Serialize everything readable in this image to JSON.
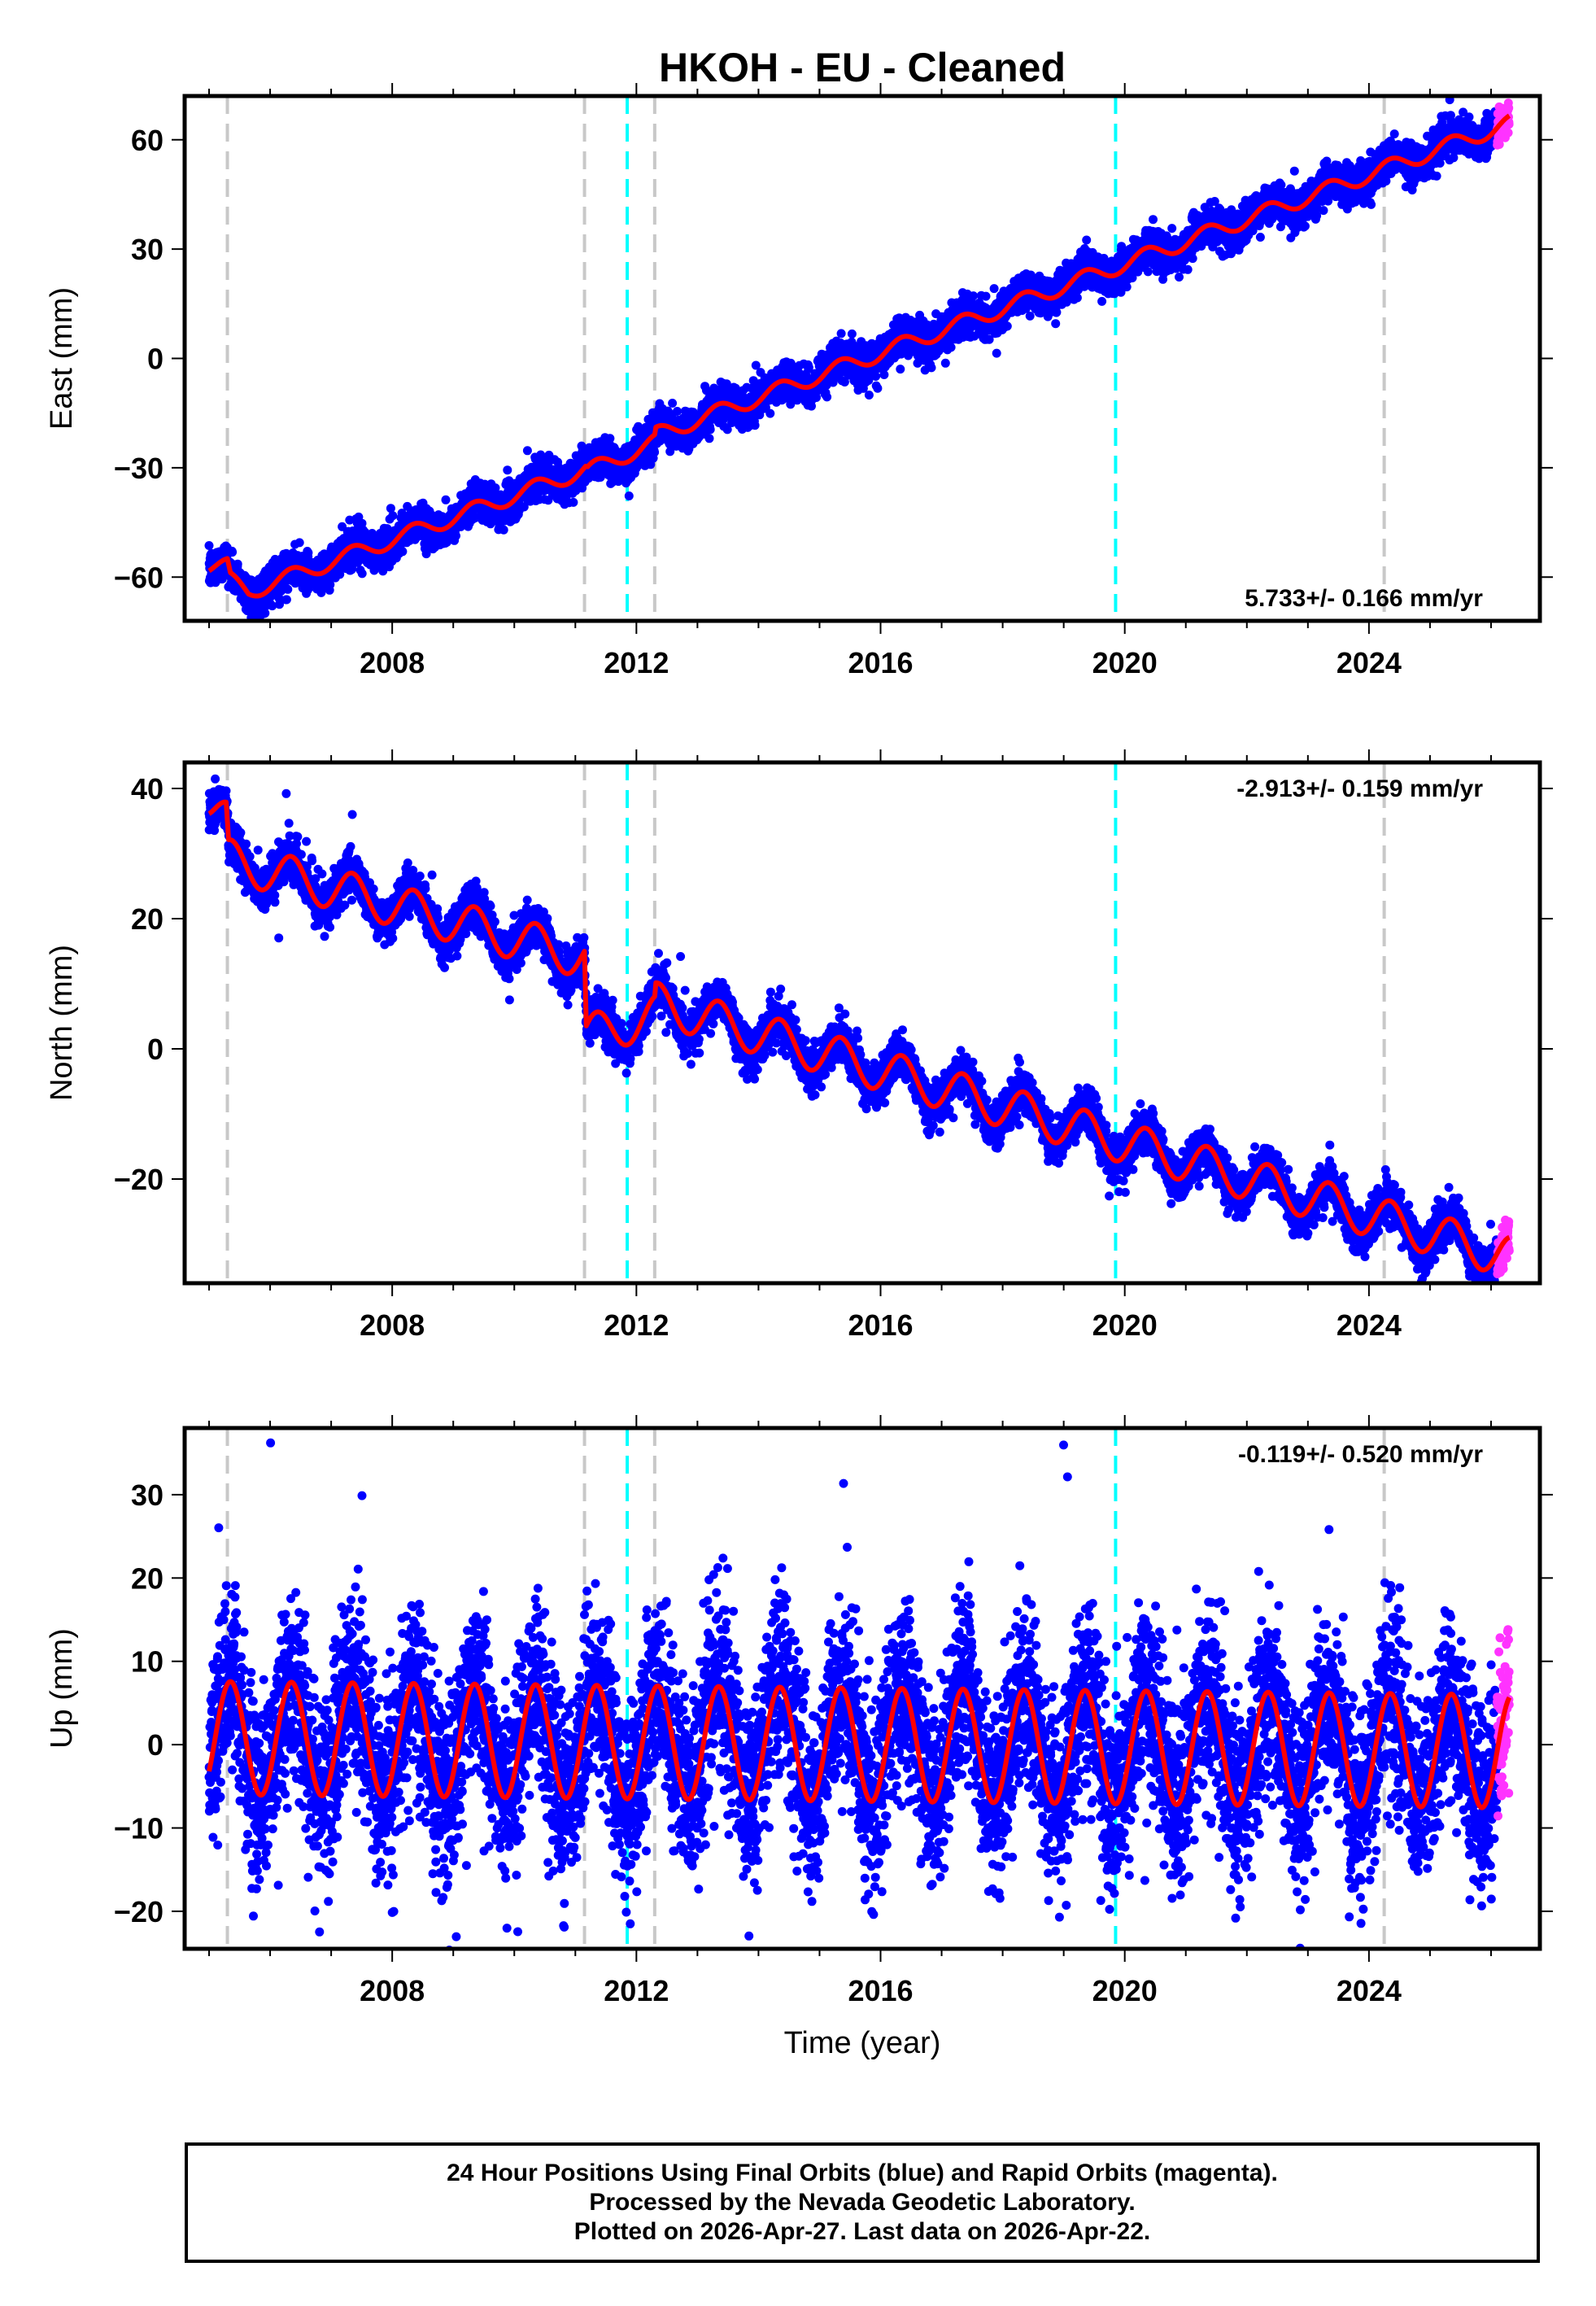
{
  "page": {
    "title": "HKOH  - EU - Cleaned",
    "x_axis_label": "Time (year)",
    "footer_lines": [
      "24 Hour Positions Using Final Orbits (blue) and Rapid Orbits (magenta).",
      "Processed by the Nevada Geodetic Laboratory.",
      "Plotted on 2026-Apr-27. Last data on 2026-Apr-22."
    ]
  },
  "colors": {
    "final_orbits": "#0000ff",
    "rapid_orbits": "#ff33ff",
    "model": "#ff0000",
    "equipment_change": "#c8c8c8",
    "earthquake": "#00ffff"
  },
  "chart_data": [
    {
      "type": "scatter",
      "component": "East",
      "ylabel": "East (mm)",
      "xlim": [
        2004.6,
        2026.8
      ],
      "ylim": [
        -72,
        72
      ],
      "xticks": [
        2008,
        2012,
        2016,
        2020,
        2024
      ],
      "xtick_labels": [
        "2008",
        "2012",
        "2016",
        "2020",
        "2024"
      ],
      "yticks": [
        -60,
        -30,
        0,
        30,
        60
      ],
      "ytick_labels": [
        "−60",
        "−30",
        "0",
        "30",
        "60"
      ],
      "rate_text": "5.733+/- 0.166 mm/yr",
      "rate_position": "bottom-right",
      "velocity_mm_per_yr": 5.733,
      "model_anchors": [
        [
          2005.0,
          -57
        ],
        [
          2005.3,
          -57
        ],
        [
          2005.35,
          -61
        ],
        [
          2005.65,
          -64
        ],
        [
          2011.17,
          -30.5
        ],
        [
          2011.2,
          -31
        ],
        [
          2012.3,
          -23
        ],
        [
          2012.32,
          -21
        ],
        [
          2026.3,
          64.5
        ]
      ],
      "seasonal_amplitude_mm": 2.2,
      "scatter_mm": 2.5,
      "equipment_changes": [
        2005.3,
        2011.15,
        2012.3,
        2024.25
      ],
      "earthquakes": [
        2011.85,
        2019.85
      ],
      "rapid_range": [
        2026.1,
        2026.35
      ],
      "grid": false
    },
    {
      "type": "scatter",
      "component": "North",
      "ylabel": "North (mm)",
      "xlim": [
        2004.6,
        2026.8
      ],
      "ylim": [
        -36,
        44
      ],
      "xticks": [
        2008,
        2012,
        2016,
        2020,
        2024
      ],
      "xtick_labels": [
        "2008",
        "2012",
        "2016",
        "2020",
        "2024"
      ],
      "yticks": [
        -20,
        0,
        20,
        40
      ],
      "ytick_labels": [
        "−20",
        "0",
        "20",
        "40"
      ],
      "rate_text": "-2.913+/- 0.159 mm/yr",
      "rate_position": "top-right",
      "velocity_mm_per_yr": -2.913,
      "model_anchors": [
        [
          2005.0,
          38
        ],
        [
          2005.28,
          35
        ],
        [
          2005.32,
          29
        ],
        [
          2011.15,
          14
        ],
        [
          2011.18,
          2
        ],
        [
          2012.3,
          5
        ],
        [
          2012.32,
          7
        ],
        [
          2026.3,
          -32
        ]
      ],
      "seasonal_amplitude_mm": 3.2,
      "scatter_mm": 1.6,
      "equipment_changes": [
        2005.3,
        2011.15,
        2012.3,
        2024.25
      ],
      "earthquakes": [
        2011.85,
        2019.85
      ],
      "rapid_range": [
        2026.1,
        2026.35
      ],
      "grid": false
    },
    {
      "type": "scatter",
      "component": "Up",
      "ylabel": "Up (mm)",
      "xlim": [
        2004.6,
        2026.8
      ],
      "ylim": [
        -24.5,
        38
      ],
      "xticks": [
        2008,
        2012,
        2016,
        2020,
        2024
      ],
      "xtick_labels": [
        "2008",
        "2012",
        "2016",
        "2020",
        "2024"
      ],
      "yticks": [
        -20,
        -10,
        0,
        10,
        20,
        30
      ],
      "ytick_labels": [
        "−20",
        "−10",
        "0",
        "10",
        "20",
        "30"
      ],
      "rate_text": "-0.119+/- 0.520 mm/yr",
      "rate_position": "top-right",
      "velocity_mm_per_yr": -0.119,
      "model_anchors": [
        [
          2005.0,
          0.8
        ],
        [
          2026.3,
          -0.8
        ]
      ],
      "seasonal_amplitude_mm": 6.8,
      "scatter_mm": 5.5,
      "equipment_changes": [
        2005.3,
        2011.15,
        2012.3,
        2024.25
      ],
      "earthquakes": [
        2011.85,
        2019.85
      ],
      "rapid_range": [
        2026.1,
        2026.35
      ],
      "grid": false
    }
  ]
}
